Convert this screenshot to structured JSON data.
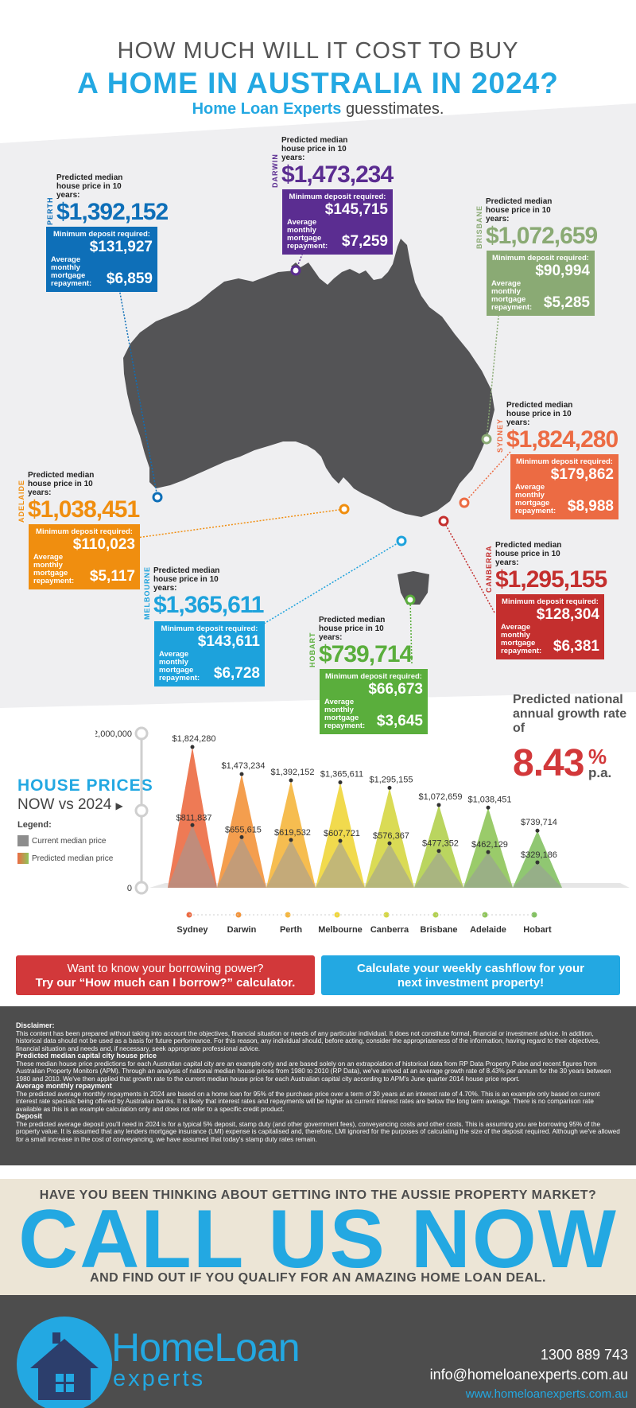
{
  "header": {
    "line1": "HOW MUCH WILL IT COST TO BUY",
    "line2": "A HOME IN AUSTRALIA IN 2024?",
    "brand": "Home Loan Experts",
    "line3_rest": " guesstimates."
  },
  "labels": {
    "predicted": "Predicted median house price in 10 years:",
    "deposit": "Minimum deposit required:",
    "repayment": "Average monthly mortgage repayment:"
  },
  "cities": [
    {
      "key": "perth",
      "name": "PERTH",
      "price": "$1,392,152",
      "deposit": "$131,927",
      "repayment": "$6,859",
      "color": "#0e6fb8"
    },
    {
      "key": "darwin",
      "name": "DARWIN",
      "price": "$1,473,234",
      "deposit": "$145,715",
      "repayment": "$7,259",
      "color": "#5b2d91"
    },
    {
      "key": "brisbane",
      "name": "BRISBANE",
      "price": "$1,072,659",
      "deposit": "$90,994",
      "repayment": "$5,285",
      "color": "#8aaa74"
    },
    {
      "key": "sydney",
      "name": "SYDNEY",
      "price": "$1,824,280",
      "deposit": "$179,862",
      "repayment": "$8,988",
      "color": "#ec6b43"
    },
    {
      "key": "adelaide",
      "name": "ADELAIDE",
      "price": "$1,038,451",
      "deposit": "$110,023",
      "repayment": "$5,117",
      "color": "#f08e0f"
    },
    {
      "key": "canberra",
      "name": "CANBERRA",
      "price": "$1,295,155",
      "deposit": "$128,304",
      "repayment": "$6,381",
      "color": "#c42f2e"
    },
    {
      "key": "melbourne",
      "name": "MELBOURNE",
      "price": "$1,365,611",
      "deposit": "$143,611",
      "repayment": "$6,728",
      "color": "#1da2dc"
    },
    {
      "key": "hobart",
      "name": "HOBART",
      "price": "$739,714",
      "deposit": "$66,673",
      "repayment": "$3,645",
      "color": "#5aae3c"
    }
  ],
  "growth": {
    "label": "Predicted national annual growth rate of",
    "value": "8.43",
    "pct": "%",
    "pa": "p.a."
  },
  "chart": {
    "title1": "HOUSE PRICES",
    "title2": "NOW vs 2024",
    "legend_title": "Legend:",
    "legend_current": "Current median price",
    "legend_predicted": "Predicted median price"
  },
  "chart_data": {
    "type": "area",
    "categories": [
      "Sydney",
      "Darwin",
      "Perth",
      "Melbourne",
      "Canberra",
      "Brisbane",
      "Adelaide",
      "Hobart"
    ],
    "series": [
      {
        "name": "Predicted median price",
        "values": [
          1824280,
          1473234,
          1392152,
          1365611,
          1295155,
          1072659,
          1038451,
          739714
        ],
        "labels": [
          "$1,824,280",
          "$1,473,234",
          "$1,392,152",
          "$1,365,611",
          "$1,295,155",
          "$1,072,659",
          "$1,038,451",
          "$739,714"
        ]
      },
      {
        "name": "Current median price",
        "values": [
          811837,
          655615,
          619532,
          607721,
          576367,
          477352,
          462129,
          329186
        ],
        "labels": [
          "$811,837",
          "$655,615",
          "$619,532",
          "$607,721",
          "$576,367",
          "$477,352",
          "$462,129",
          "$329,186"
        ]
      }
    ],
    "colors": [
      "#ec6b43",
      "#f3943b",
      "#f5b63d",
      "#f0d63a",
      "#d6d742",
      "#b2d04e",
      "#8fc55a",
      "#84c163"
    ],
    "yticks": [
      {
        "value": 2000000,
        "label": "$2,000,000"
      },
      {
        "value": 0,
        "label": "0"
      }
    ],
    "ylim": [
      0,
      2000000
    ]
  },
  "cta": {
    "left_line1": "Want to know your borrowing power?",
    "left_line2": "Try our “How much can I borrow?” calculator.",
    "right_line1": "Calculate your weekly cashflow for your",
    "right_line2": "next investment property!",
    "left_color": "#d2383a",
    "right_color": "#23a8e2"
  },
  "disclaimer": {
    "h1": "Disclaimer:",
    "p1": "This content has been prepared without taking into account the objectives, financial situation or needs of any particular individual. It does not constitute formal, financial or investment advice. In addition, historical data should not be used as a basis for future performance. For this reason, any individual should, before acting, consider the appropriateness of the information, having regard to their objectives, financial situation and needs and, if necessary, seek appropriate professional advice.",
    "h2": "Predicted median capital city house price",
    "p2": "These median house price predictions for each Australian capital city are an example only and are based solely on an extrapolation of historical data from RP Data Property Pulse and recent figures from Australian Property Monitors (APM). Through an analysis of national median house prices from 1980 to 2010 (RP Data), we've arrived at an average growth rate of 8.43% per annum for the 30 years between 1980 and 2010. We've then applied that growth rate to the current median house price for each Australian capital city according to APM's June quarter 2014 house price report.",
    "h3": "Average monthly repayment",
    "p3": "The predicted average monthly repayments in 2024 are based on a home loan for 95% of the purchase price over a term of 30 years at an interest rate of 4.70%. This is an example only based on current interest rate specials being offered by Australian banks. It is likely that interest rates and repayments will be higher as current interest rates are below the long term average. There is no comparison rate available as this is an example calculation only and does not refer to a specific credit product.",
    "h4": "Deposit",
    "p4": "The predicted average deposit you'll need in 2024 is for a typical 5% deposit, stamp duty (and other government fees), conveyancing costs and other costs. This is assuming you are borrowing 95% of the property value. It is assumed that any lenders mortgage insurance (LMI) expense is capitalised and, therefore, LMI ignored for the purposes of calculating the size of the deposit required. Although we've allowed for a small increase in the cost of conveyancing, we have assumed that today's stamp duty rates remain."
  },
  "call": {
    "line1": "HAVE YOU BEEN THINKING ABOUT GETTING INTO THE AUSSIE PROPERTY MARKET?",
    "line2": "CALL US NOW",
    "line3": "AND FIND OUT IF YOU QUALIFY FOR AN AMAZING HOME LOAN DEAL."
  },
  "footer": {
    "logo_word1": "HomeLoan",
    "logo_word2": "experts",
    "phone": "1300 889 743",
    "email": "info@homeloanexperts.com.au",
    "web": "www.homeloanexperts.com.au"
  }
}
